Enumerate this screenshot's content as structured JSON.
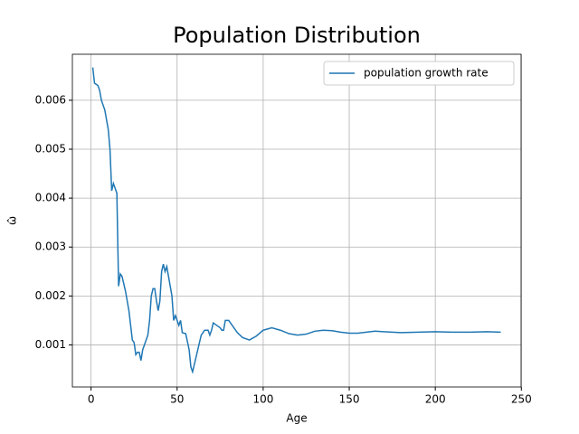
{
  "chart_data": {
    "type": "line",
    "title": "Population Distribution",
    "xlabel": "Age",
    "ylabel": "ω̂",
    "x": [
      1,
      2,
      4,
      5,
      6,
      8,
      10,
      11,
      12,
      13,
      15,
      16,
      17,
      18,
      20,
      22,
      24,
      25,
      26,
      27,
      28,
      29,
      30,
      31,
      33,
      34,
      35,
      36,
      37,
      38,
      39,
      40,
      41,
      42,
      43,
      44,
      45,
      46,
      47,
      48,
      49,
      50,
      51,
      52,
      53,
      55,
      57,
      58,
      59,
      60,
      62,
      64,
      66,
      68,
      69,
      70,
      71,
      73,
      75,
      76,
      77,
      78,
      80,
      82,
      85,
      88,
      92,
      96,
      100,
      105,
      110,
      115,
      120,
      125,
      130,
      135,
      140,
      145,
      150,
      155,
      160,
      165,
      170,
      180,
      190,
      200,
      210,
      220,
      230,
      238
    ],
    "series": [
      {
        "name": "population growth rate",
        "color": "#1f77b4",
        "values": [
          0.00667,
          0.00635,
          0.0063,
          0.0062,
          0.006,
          0.0058,
          0.0054,
          0.005,
          0.00415,
          0.0043,
          0.0041,
          0.0022,
          0.00245,
          0.0024,
          0.0021,
          0.0017,
          0.0011,
          0.00105,
          0.0008,
          0.00085,
          0.00085,
          0.00068,
          0.0009,
          0.001,
          0.0012,
          0.0015,
          0.002,
          0.00215,
          0.00215,
          0.0019,
          0.0017,
          0.0019,
          0.0025,
          0.00265,
          0.0025,
          0.0026,
          0.0024,
          0.0022,
          0.002,
          0.0015,
          0.0016,
          0.0015,
          0.0014,
          0.0015,
          0.00125,
          0.00123,
          0.0009,
          0.00055,
          0.00045,
          0.0006,
          0.0009,
          0.0012,
          0.0013,
          0.0013,
          0.0012,
          0.0013,
          0.00145,
          0.0014,
          0.00135,
          0.0013,
          0.0013,
          0.0015,
          0.0015,
          0.0014,
          0.00125,
          0.00115,
          0.0011,
          0.00118,
          0.0013,
          0.00135,
          0.0013,
          0.00123,
          0.0012,
          0.00122,
          0.00128,
          0.0013,
          0.00129,
          0.00126,
          0.00124,
          0.00124,
          0.00126,
          0.00128,
          0.00127,
          0.00125,
          0.00126,
          0.00127,
          0.00126,
          0.00126,
          0.00127,
          0.00126
        ]
      }
    ],
    "xlim": [
      -10.85,
      249.85
    ],
    "ylim": [
      0.00014,
      0.00694
    ],
    "xticks": [
      0,
      50,
      100,
      150,
      200,
      250
    ],
    "yticks": [
      0.001,
      0.002,
      0.003,
      0.004,
      0.005,
      0.006
    ],
    "grid": true,
    "legend": "upper-right"
  }
}
